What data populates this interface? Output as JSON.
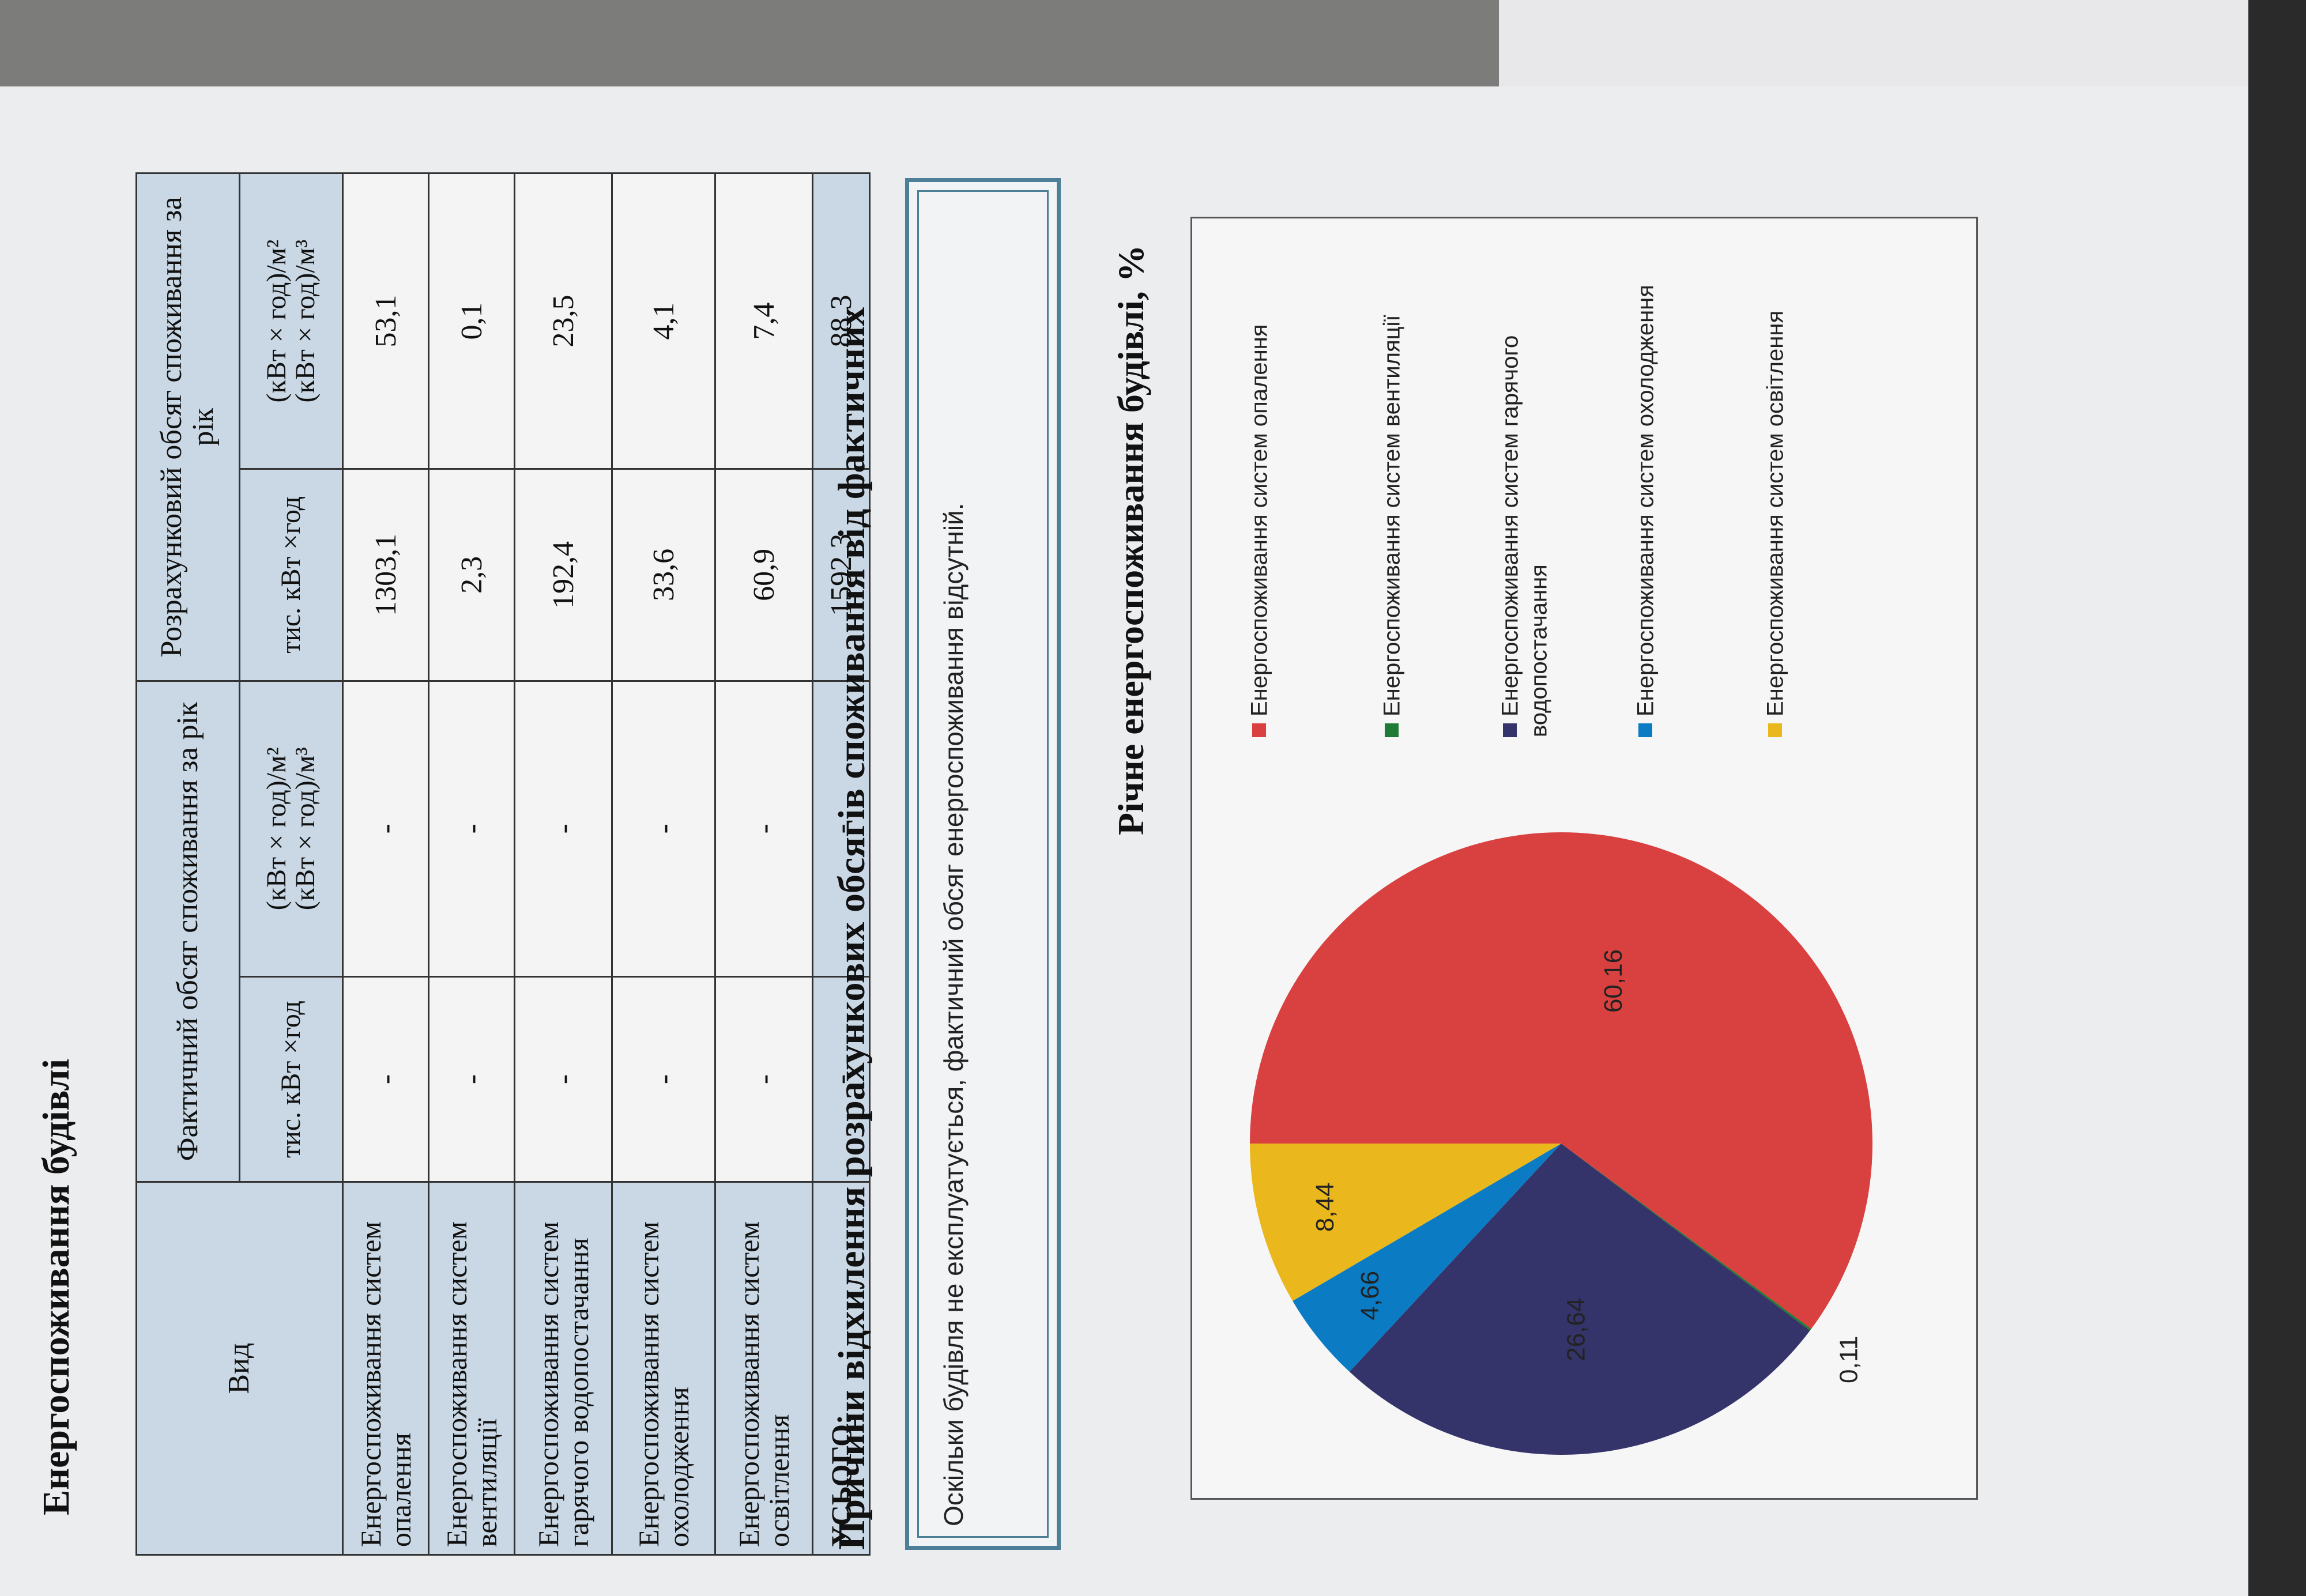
{
  "title": "Енергоспоживання будівлі",
  "table": {
    "col_vid": "Вид",
    "col_fact": "Фактичний обсяг споживання за рік",
    "col_calc": "Розрахунковий обсяг споживання за рік",
    "sub_tys": "тис. кВт ×год",
    "sub_spec_1": "(кВт × год)/м²",
    "sub_spec_2": "(кВт × год)/м³",
    "rows": [
      {
        "label": "Енергоспоживання систем опалення",
        "fact_tys": "-",
        "fact_spec": "-",
        "calc_tys": "1303,1",
        "calc_spec": "53,1"
      },
      {
        "label": "Енергоспоживання систем вентиляції",
        "fact_tys": "-",
        "fact_spec": "-",
        "calc_tys": "2,3",
        "calc_spec": "0,1"
      },
      {
        "label": "Енергоспоживання систем гарячого водопостачання",
        "fact_tys": "-",
        "fact_spec": "-",
        "calc_tys": "192,4",
        "calc_spec": "23,5"
      },
      {
        "label": "Енергоспоживання систем охолодження",
        "fact_tys": "-",
        "fact_spec": "-",
        "calc_tys": "33,6",
        "calc_spec": "4,1"
      },
      {
        "label": "Енергоспоживання систем освітлення",
        "fact_tys": "-",
        "fact_spec": "-",
        "calc_tys": "60,9",
        "calc_spec": "7,4"
      }
    ],
    "total": {
      "label": "УСЬОГО:",
      "fact_tys": "-",
      "fact_spec": "-",
      "calc_tys": "1592,3",
      "calc_spec": "88,3"
    }
  },
  "reason": {
    "title": "Причини відхилення розрахункових обсягів споживання від фактичних",
    "text": "Оскільки будівля не експлуатується, фактичний обсяг енергоспоживання відсутній."
  },
  "chart_data": {
    "type": "pie",
    "title": "Річне енергоспоживання будівлі, %",
    "categories": [
      "Енергоспоживання систем опалення",
      "Енергоспоживання систем вентиляції",
      "Енергоспоживання систем гарячого водопостачання",
      "Енергоспоживання систем охолодження",
      "Енергоспоживання систем освітлення"
    ],
    "values": [
      60.16,
      0.11,
      26.64,
      4.66,
      8.44
    ],
    "value_labels": [
      "60,16",
      "0,11",
      "26,64",
      "4,66",
      "8,44"
    ],
    "colors": [
      "#d8413f",
      "#1f7a35",
      "#34336a",
      "#0b7cc4",
      "#eab71c"
    ],
    "legend_placement": "right"
  }
}
